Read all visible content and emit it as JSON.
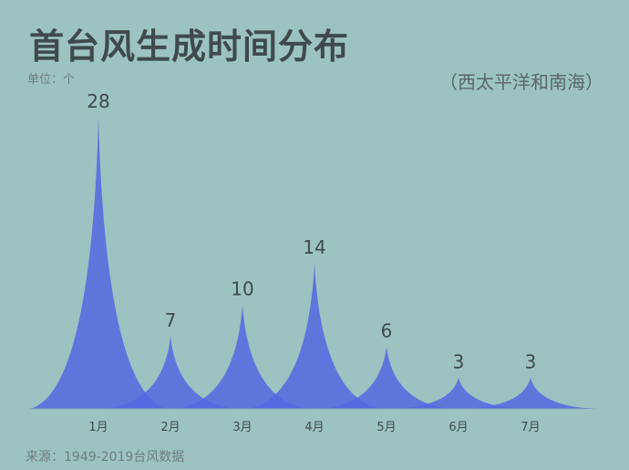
{
  "header": {
    "title": "首台风生成时间分布",
    "unit": "单位：个",
    "region": "（西太平洋和南海）"
  },
  "footer": {
    "source": "来源：1949-2019台风数据"
  },
  "colors": {
    "background": "#9cc3c2",
    "peak_fill": "#5468e0",
    "text": "#3f4a4c"
  },
  "chart_data": {
    "type": "area",
    "categories": [
      "1月",
      "2月",
      "3月",
      "4月",
      "5月",
      "6月",
      "7月"
    ],
    "values": [
      28,
      7,
      10,
      14,
      6,
      3,
      3
    ],
    "title": "首台风生成时间分布",
    "ylabel": "单位：个",
    "ylim": [
      0,
      28
    ],
    "grid": false,
    "legend": "none"
  }
}
